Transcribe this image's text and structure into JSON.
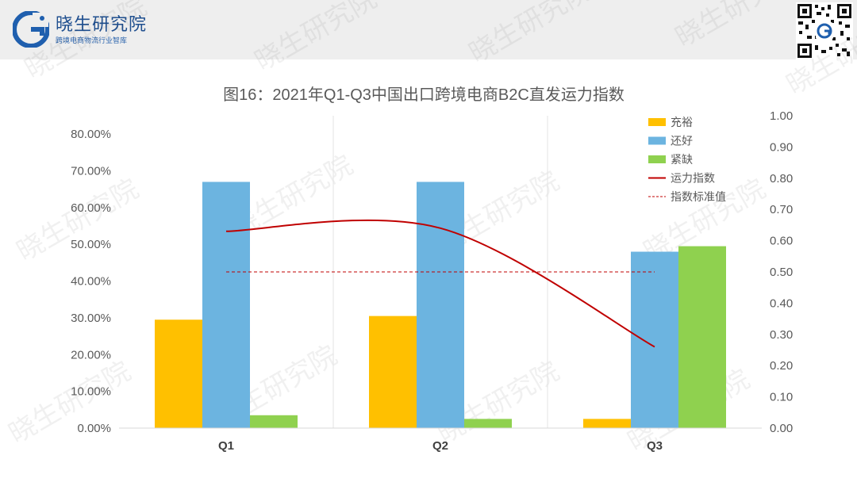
{
  "header": {
    "brand_name": "晓生研究院",
    "brand_sub": "跨境电商物流行业智库",
    "logo_icon": "g-letter-logo-icon",
    "qr_icon": "qr-code-icon"
  },
  "watermark": "晓生研究院",
  "colors": {
    "充裕": "#ffc000",
    "还好": "#6cb4e0",
    "紧缺": "#8fd14f",
    "运力指数": "#c00000",
    "指数标准值": "#c00000"
  },
  "chart_data": {
    "type": "bar",
    "title": "图16：2021年Q1-Q3中国出口跨境电商B2C直发运力指数",
    "categories": [
      "Q1",
      "Q2",
      "Q3"
    ],
    "y_left": {
      "range": [
        0,
        0.85
      ],
      "ticks": [
        "0.00%",
        "10.00%",
        "20.00%",
        "30.00%",
        "40.00%",
        "50.00%",
        "60.00%",
        "70.00%",
        "80.00%"
      ]
    },
    "y_right": {
      "range": [
        0,
        1.0
      ],
      "ticks": [
        "0.00",
        "0.10",
        "0.20",
        "0.30",
        "0.40",
        "0.50",
        "0.60",
        "0.70",
        "0.80",
        "0.90",
        "1.00"
      ]
    },
    "series": [
      {
        "name": "充裕",
        "type": "bar",
        "axis": "left",
        "values": [
          0.295,
          0.305,
          0.025
        ]
      },
      {
        "name": "还好",
        "type": "bar",
        "axis": "left",
        "values": [
          0.67,
          0.67,
          0.48
        ]
      },
      {
        "name": "紧缺",
        "type": "bar",
        "axis": "left",
        "values": [
          0.035,
          0.025,
          0.495
        ]
      },
      {
        "name": "运力指数",
        "type": "line",
        "axis": "right",
        "values": [
          0.63,
          0.64,
          0.26
        ]
      },
      {
        "name": "指数标准值",
        "type": "dashed",
        "axis": "right",
        "values": [
          0.5,
          0.5,
          0.5
        ]
      }
    ],
    "legend": "top-right",
    "grid": "vertical category separators"
  }
}
